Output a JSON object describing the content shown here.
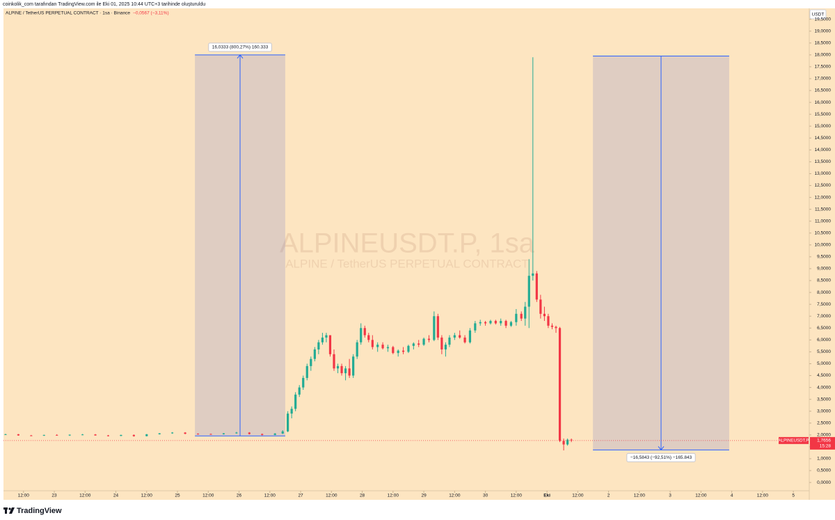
{
  "chart_data": {
    "type": "candlestick",
    "credit": "coinkolik_com tarafından TradingView.com ile Eki 01, 2025 10:44 UTC+3 tarihinde oluşturuldu",
    "title": "ALPINE / TetherUS PERPETUAL CONTRACT · 1sa · Binance",
    "change": "−0,0567 (−3,11%)",
    "currency": "USDT",
    "watermark": "ALPINEUSDT.P, 1sa",
    "watermark_subtitle": "ALPINE / TetherUS PERPETUAL CONTRACT",
    "brand": "TradingView",
    "up_color": "#22ab94",
    "down_color": "#f23645",
    "background": "#fde5c1",
    "grid": false,
    "xlim": [
      4.2,
      318.2
    ],
    "ylim": [
      -0.73,
      19.9
    ],
    "xticks": [
      {
        "value": 12,
        "label": "12:00"
      },
      {
        "value": 24,
        "label": "23"
      },
      {
        "value": 36,
        "label": "12:00"
      },
      {
        "value": 48,
        "label": "24"
      },
      {
        "value": 60,
        "label": "12:00"
      },
      {
        "value": 72,
        "label": "25"
      },
      {
        "value": 84,
        "label": "12:00"
      },
      {
        "value": 96,
        "label": "26"
      },
      {
        "value": 108,
        "label": "12:00"
      },
      {
        "value": 120,
        "label": "27"
      },
      {
        "value": 132,
        "label": "12:00"
      },
      {
        "value": 144,
        "label": "28"
      },
      {
        "value": 156,
        "label": "12:00"
      },
      {
        "value": 168,
        "label": "29"
      },
      {
        "value": 180,
        "label": "12:00"
      },
      {
        "value": 192,
        "label": "30"
      },
      {
        "value": 204,
        "label": "12:00"
      },
      {
        "value": 216,
        "label": "Eki"
      },
      {
        "value": 228,
        "label": "12:00"
      },
      {
        "value": 240,
        "label": "2"
      },
      {
        "value": 252,
        "label": "12:00"
      },
      {
        "value": 264,
        "label": "3"
      },
      {
        "value": 276,
        "label": "12:00"
      },
      {
        "value": 288,
        "label": "4"
      },
      {
        "value": 300,
        "label": "12:00"
      },
      {
        "value": 312,
        "label": "5"
      }
    ],
    "yticks": [
      {
        "value": 0,
        "label": "0,0000"
      },
      {
        "value": 0.5,
        "label": "0,5000"
      },
      {
        "value": 1,
        "label": "1,0000"
      },
      {
        "value": 1.5,
        "label": "1,5000"
      },
      {
        "value": 2,
        "label": "2,0000"
      },
      {
        "value": 2.5,
        "label": "2,5000"
      },
      {
        "value": 3,
        "label": "3,0000"
      },
      {
        "value": 3.5,
        "label": "3,5000"
      },
      {
        "value": 4,
        "label": "4,0000"
      },
      {
        "value": 4.5,
        "label": "4,5000"
      },
      {
        "value": 5,
        "label": "5,0000"
      },
      {
        "value": 5.5,
        "label": "5,5000"
      },
      {
        "value": 6,
        "label": "6,0000"
      },
      {
        "value": 6.5,
        "label": "6,5000"
      },
      {
        "value": 7,
        "label": "7,0000"
      },
      {
        "value": 7.5,
        "label": "7,5000"
      },
      {
        "value": 8,
        "label": "8,0000"
      },
      {
        "value": 8.5,
        "label": "8,5000"
      },
      {
        "value": 9,
        "label": "9,0000"
      },
      {
        "value": 9.5,
        "label": "9,5000"
      },
      {
        "value": 10,
        "label": "10,0000"
      },
      {
        "value": 10.5,
        "label": "10,5000"
      },
      {
        "value": 11,
        "label": "11,0000"
      },
      {
        "value": 11.5,
        "label": "11,5000"
      },
      {
        "value": 12,
        "label": "12,0000"
      },
      {
        "value": 12.5,
        "label": "12,5000"
      },
      {
        "value": 13,
        "label": "13,0000"
      },
      {
        "value": 13.5,
        "label": "13,5000"
      },
      {
        "value": 14,
        "label": "14,0000"
      },
      {
        "value": 14.5,
        "label": "14,5000"
      },
      {
        "value": 15,
        "label": "15,0000"
      },
      {
        "value": 15.5,
        "label": "15,5000"
      },
      {
        "value": 16,
        "label": "16,0000"
      },
      {
        "value": 16.5,
        "label": "16,5000"
      },
      {
        "value": 17,
        "label": "17,0000"
      },
      {
        "value": 17.5,
        "label": "17,5000"
      },
      {
        "value": 18,
        "label": "18,0000"
      },
      {
        "value": 18.5,
        "label": "18,5000"
      },
      {
        "value": 19,
        "label": "19,0000"
      },
      {
        "value": 19.5,
        "label": "19,5000"
      }
    ],
    "x": [
      5,
      10,
      15,
      20,
      25,
      30,
      35,
      40,
      45,
      50,
      55,
      60,
      65,
      70,
      75,
      80,
      85,
      90,
      95,
      100,
      105,
      110,
      113,
      115,
      116.5,
      118,
      119.5,
      121,
      122.5,
      124,
      125.5,
      127,
      128.5,
      130,
      131.5,
      133,
      134.5,
      136,
      137.5,
      139,
      140.5,
      142,
      143.5,
      145,
      146.5,
      148,
      150,
      152,
      154,
      156,
      158,
      160,
      162,
      164,
      166,
      168,
      170,
      172,
      173.5,
      175,
      176.5,
      178,
      180,
      182,
      184,
      186,
      188,
      190,
      192,
      194,
      196,
      198,
      200,
      202,
      204,
      206,
      207.5,
      209,
      210.5,
      212,
      213.5,
      215,
      216.5,
      218,
      219.5,
      221,
      222.5,
      224,
      225.5
    ],
    "open": [
      2.02,
      2.03,
      1.98,
      1.97,
      2.0,
      1.99,
      2.01,
      2.02,
      1.98,
      1.96,
      2.0,
      1.95,
      2.03,
      2.07,
      2.1,
      2.05,
      2.04,
      2.03,
      2.07,
      2.1,
      2.04,
      2.0,
      2.06,
      2.15,
      2.9,
      3.1,
      3.7,
      4.0,
      4.4,
      4.9,
      5.2,
      5.6,
      5.9,
      6.1,
      6.2,
      5.4,
      4.8,
      4.9,
      4.6,
      4.8,
      4.5,
      5.3,
      5.9,
      6.5,
      6.2,
      6.0,
      5.7,
      5.8,
      5.65,
      5.7,
      5.45,
      5.55,
      5.5,
      5.75,
      5.85,
      5.8,
      6.05,
      6.0,
      7.0,
      6.1,
      5.6,
      5.8,
      6.1,
      6.2,
      6.1,
      5.9,
      6.4,
      6.7,
      6.75,
      6.7,
      6.8,
      6.7,
      6.8,
      6.6,
      6.75,
      7.1,
      6.9,
      7.4,
      8.7,
      8.8,
      7.7,
      7.1,
      7.0,
      6.6,
      6.55,
      6.5,
      1.75,
      1.6,
      1.8
    ],
    "high": [
      2.05,
      2.04,
      2.0,
      2.01,
      2.03,
      2.02,
      2.04,
      2.04,
      2.0,
      2.01,
      2.02,
      2.04,
      2.08,
      2.12,
      2.12,
      2.07,
      2.06,
      2.08,
      2.13,
      2.12,
      2.06,
      2.08,
      2.2,
      3.0,
      3.2,
      3.8,
      4.1,
      4.5,
      5.0,
      5.3,
      5.7,
      6.0,
      6.3,
      6.3,
      6.2,
      5.6,
      5.0,
      5.0,
      4.9,
      5.2,
      5.4,
      6.0,
      6.7,
      6.6,
      6.3,
      6.2,
      5.9,
      5.9,
      5.8,
      5.75,
      5.6,
      5.7,
      5.8,
      5.9,
      6.0,
      6.1,
      6.2,
      7.2,
      7.1,
      6.2,
      5.9,
      6.2,
      6.3,
      6.4,
      6.2,
      6.5,
      6.8,
      6.85,
      6.8,
      6.85,
      6.85,
      6.9,
      6.85,
      6.8,
      7.3,
      7.2,
      7.6,
      9.4,
      17.9,
      8.9,
      7.9,
      7.4,
      7.1,
      6.7,
      6.6,
      6.55,
      1.85,
      1.85,
      1.85
    ],
    "low": [
      2.0,
      1.97,
      1.95,
      1.96,
      1.98,
      1.96,
      1.99,
      1.97,
      1.94,
      1.95,
      1.93,
      1.94,
      2.02,
      2.05,
      2.03,
      2.02,
      2.01,
      2.02,
      2.05,
      2.02,
      1.98,
      1.99,
      2.04,
      2.12,
      2.7,
      3.0,
      3.6,
      3.9,
      4.3,
      4.7,
      5.1,
      5.4,
      5.8,
      5.9,
      5.3,
      4.7,
      4.6,
      4.5,
      4.3,
      4.4,
      4.4,
      5.2,
      5.8,
      6.1,
      5.9,
      5.6,
      5.5,
      5.6,
      5.5,
      5.4,
      5.3,
      5.4,
      5.45,
      5.6,
      5.7,
      5.75,
      5.9,
      5.95,
      6.0,
      5.4,
      5.3,
      5.7,
      6.0,
      6.05,
      5.85,
      5.85,
      6.3,
      6.6,
      6.6,
      6.65,
      6.65,
      6.6,
      6.5,
      6.55,
      6.6,
      6.8,
      6.6,
      6.5,
      8.5,
      7.6,
      6.9,
      6.8,
      6.5,
      6.45,
      6.3,
      1.7,
      1.35,
      1.55,
      1.7
    ],
    "close": [
      2.03,
      1.98,
      1.97,
      2.0,
      1.99,
      2.01,
      2.02,
      1.98,
      1.96,
      2.0,
      1.95,
      2.03,
      2.07,
      2.1,
      2.05,
      2.04,
      2.03,
      2.07,
      2.1,
      2.04,
      2.0,
      2.06,
      2.15,
      2.9,
      3.1,
      3.7,
      4.0,
      4.4,
      4.9,
      5.2,
      5.6,
      5.9,
      6.1,
      6.2,
      5.4,
      4.8,
      4.9,
      4.6,
      4.8,
      4.5,
      5.3,
      5.9,
      6.5,
      6.2,
      6.0,
      5.7,
      5.8,
      5.65,
      5.7,
      5.45,
      5.55,
      5.5,
      5.75,
      5.85,
      5.8,
      6.05,
      6.0,
      7.0,
      6.1,
      5.6,
      5.8,
      6.1,
      6.2,
      6.1,
      5.9,
      6.4,
      6.7,
      6.75,
      6.7,
      6.8,
      6.7,
      6.8,
      6.6,
      6.75,
      7.1,
      6.9,
      7.4,
      8.7,
      8.8,
      7.7,
      7.1,
      7.0,
      6.6,
      6.55,
      6.5,
      1.75,
      1.6,
      1.8,
      1.77
    ],
    "last_price": {
      "value": 1.7656,
      "label": "1,7656"
    },
    "symbol_label": "ALPINEUSDT.P",
    "countdown": "15:28",
    "measures": [
      {
        "x": [
          78.8,
          114
        ],
        "y": [
          1.96,
          18.0
        ],
        "label": "16,0333 (800,27%) 160.333"
      },
      {
        "x": [
          233.9,
          287
        ],
        "y": [
          17.95,
          1.37
        ],
        "label": "−16,5843 (−92,51%) −165.843"
      }
    ]
  }
}
